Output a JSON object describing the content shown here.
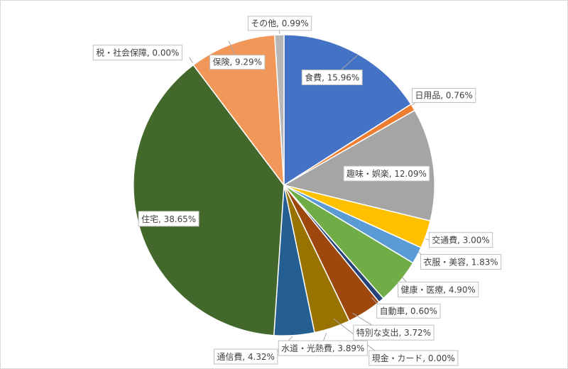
{
  "chart_data": {
    "type": "pie",
    "title": "",
    "start_angle_deg": 0,
    "direction": "clockwise",
    "slices": [
      {
        "label": "食費",
        "value": 15.96,
        "display": "食費, 15.96%",
        "color": "#4472c4",
        "label_inside": true
      },
      {
        "label": "日用品",
        "value": 0.76,
        "display": "日用品, 0.76%",
        "color": "#ed7d31",
        "label_inside": false
      },
      {
        "label": "趣味・娯楽",
        "value": 12.09,
        "display": "趣味・娯楽, 12.09%",
        "color": "#a5a5a5",
        "label_inside": true
      },
      {
        "label": "交通費",
        "value": 3.0,
        "display": "交通費, 3.00%",
        "color": "#ffc000",
        "label_inside": false
      },
      {
        "label": "衣服・美容",
        "value": 1.83,
        "display": "衣服・美容, 1.83%",
        "color": "#5b9bd5",
        "label_inside": false
      },
      {
        "label": "健康・医療",
        "value": 4.9,
        "display": "健康・医療, 4.90%",
        "color": "#70ad47",
        "label_inside": false
      },
      {
        "label": "自動車",
        "value": 0.6,
        "display": "自動車, 0.60%",
        "color": "#264478",
        "label_inside": false
      },
      {
        "label": "特別な支出",
        "value": 3.72,
        "display": "特別な支出, 3.72%",
        "color": "#9e480e",
        "label_inside": false
      },
      {
        "label": "現金・カード",
        "value": 0.0,
        "display": "現金・カード, 0.00%",
        "color": "#636363",
        "label_inside": false
      },
      {
        "label": "水道・光熱費",
        "value": 3.89,
        "display": "水道・光熱費, 3.89%",
        "color": "#997300",
        "label_inside": false
      },
      {
        "label": "通信費",
        "value": 4.32,
        "display": "通信費, 4.32%",
        "color": "#255e91",
        "label_inside": false
      },
      {
        "label": "住宅",
        "value": 38.65,
        "display": "住宅, 38.65%",
        "color": "#43682b",
        "label_inside": true
      },
      {
        "label": "税・社会保障",
        "value": 0.0,
        "display": "税・社会保障, 0.00%",
        "color": "#698ed0",
        "label_inside": false
      },
      {
        "label": "保険",
        "value": 9.29,
        "display": "保険, 9.29%",
        "color": "#f1975a",
        "label_inside": true
      },
      {
        "label": "その他",
        "value": 0.99,
        "display": "その他, 0.99%",
        "color": "#b7b7b7",
        "label_inside": false
      }
    ]
  }
}
